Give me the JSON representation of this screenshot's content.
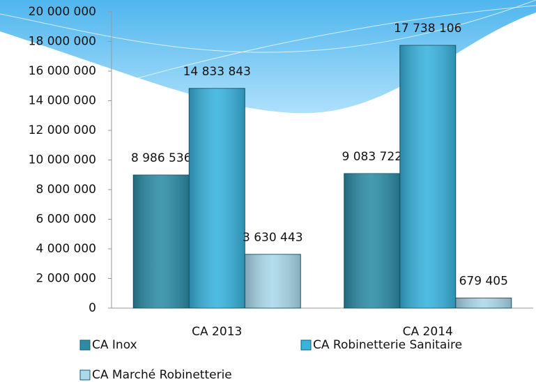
{
  "chart_data": {
    "type": "bar",
    "categories": [
      "CA 2013",
      "CA 2014"
    ],
    "series": [
      {
        "name": "CA Inox",
        "color": "#2c8ca6",
        "values": [
          8986536,
          9083722
        ],
        "value_labels": [
          "8 986 536",
          "9 083 722"
        ]
      },
      {
        "name": "CA Robinetterie Sanitaire",
        "color": "#37b3dd",
        "values": [
          14833843,
          17738106
        ],
        "value_labels": [
          "14 833 843",
          "17 738 106"
        ]
      },
      {
        "name": "CA Marché Robinetterie",
        "color": "#a9d9ea",
        "values": [
          3630443,
          679405
        ],
        "value_labels": [
          "3 630 443",
          "679 405"
        ]
      }
    ],
    "ylim": [
      0,
      20000000
    ],
    "yticks": [
      0,
      {
        "value": 2000000,
        "label": "2 000 000"
      },
      {
        "value": 4000000,
        "label": "4 000 000"
      },
      {
        "value": 6000000,
        "label": "6 000 000"
      },
      {
        "value": 8000000,
        "label": "8 000 000"
      },
      {
        "value": 10000000,
        "label": "10 000 000"
      },
      {
        "value": 12000000,
        "label": "12 000 000"
      },
      {
        "value": 14000000,
        "label": "14 000 000"
      },
      {
        "value": 16000000,
        "label": "16 000 000"
      },
      {
        "value": 18000000,
        "label": "18 000 000"
      },
      {
        "value": 20000000,
        "label": "20 000 000"
      }
    ],
    "grid": false
  }
}
